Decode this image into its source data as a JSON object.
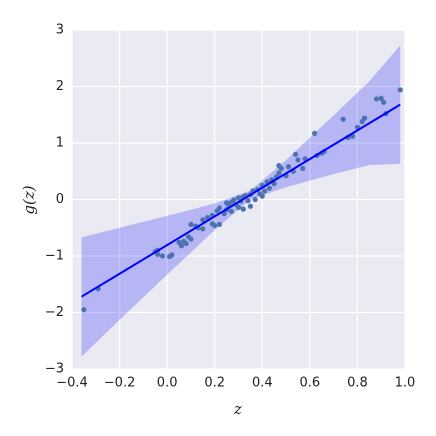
{
  "chart_data": {
    "type": "scatter",
    "xlabel": "z",
    "ylabel": "g(z)",
    "x": [
      -0.35,
      -0.29,
      -0.05,
      -0.04,
      -0.04,
      -0.02,
      0.01,
      0.02,
      0.05,
      0.06,
      0.07,
      0.08,
      0.09,
      0.1,
      0.1,
      0.12,
      0.13,
      0.15,
      0.15,
      0.17,
      0.19,
      0.19,
      0.2,
      0.21,
      0.22,
      0.22,
      0.24,
      0.25,
      0.25,
      0.26,
      0.27,
      0.27,
      0.28,
      0.29,
      0.3,
      0.3,
      0.31,
      0.32,
      0.32,
      0.33,
      0.34,
      0.35,
      0.35,
      0.36,
      0.37,
      0.38,
      0.39,
      0.4,
      0.4,
      0.41,
      0.42,
      0.43,
      0.44,
      0.45,
      0.46,
      0.47,
      0.47,
      0.48,
      0.5,
      0.51,
      0.53,
      0.54,
      0.55,
      0.57,
      0.58,
      0.62,
      0.63,
      0.65,
      0.66,
      0.74,
      0.76,
      0.78,
      0.8,
      0.82,
      0.83,
      0.88,
      0.9,
      0.91,
      0.92,
      0.98
    ],
    "values": [
      -1.95,
      -1.58,
      -0.92,
      -0.9,
      -0.97,
      -1.0,
      -1.01,
      -0.98,
      -0.76,
      -0.82,
      -0.74,
      -0.78,
      -0.66,
      -0.44,
      -0.7,
      -0.47,
      -0.5,
      -0.52,
      -0.36,
      -0.32,
      -0.28,
      -0.43,
      -0.46,
      -0.2,
      -0.44,
      -0.15,
      -0.25,
      -0.06,
      -0.18,
      -0.12,
      -0.05,
      -0.21,
      -0.01,
      -0.09,
      -0.14,
      0.03,
      -0.03,
      0.05,
      -0.17,
      0.07,
      -0.02,
      0.09,
      -0.12,
      0.15,
      0.0,
      0.18,
      0.1,
      0.06,
      0.25,
      0.15,
      0.31,
      0.2,
      0.35,
      0.28,
      0.4,
      0.47,
      0.6,
      0.55,
      0.42,
      0.58,
      0.5,
      0.8,
      0.7,
      0.55,
      0.72,
      1.17,
      0.78,
      0.82,
      0.85,
      1.42,
      1.1,
      1.12,
      1.28,
      1.38,
      1.44,
      1.78,
      1.79,
      1.72,
      1.52,
      1.94
    ],
    "color": "#4c72b0",
    "fit": {
      "x": [
        -0.36,
        0.98
      ],
      "values": [
        -1.72,
        1.68
      ],
      "color": "#0000ff"
    },
    "band": {
      "x": [
        -0.36,
        -0.2,
        0,
        0.2,
        0.35,
        0.5,
        0.7,
        0.85,
        0.98
      ],
      "lower": [
        -2.78,
        -2.13,
        -1.33,
        -0.54,
        0.0,
        0.22,
        0.45,
        0.61,
        0.63
      ],
      "upper": [
        -0.67,
        -0.5,
        -0.29,
        -0.07,
        0.16,
        0.7,
        1.49,
        2.09,
        2.73
      ],
      "color": "#0000ff"
    },
    "xlim": [
      -0.4,
      1.0
    ],
    "ylim": [
      -3,
      3
    ],
    "xticks": [
      {
        "value": -0.4,
        "label": "−0.4"
      },
      {
        "value": -0.2,
        "label": "−0.2"
      },
      {
        "value": 0,
        "label": "0.0"
      },
      0.2,
      0.4,
      0.6,
      0.8,
      {
        "value": 1,
        "label": "1.0"
      }
    ],
    "yticks": [
      {
        "value": -3,
        "label": "−3"
      },
      {
        "value": -2,
        "label": "−2"
      },
      {
        "value": -1,
        "label": "−1"
      },
      0,
      1,
      2,
      3
    ],
    "grid": true
  }
}
